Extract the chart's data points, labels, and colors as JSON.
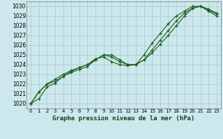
{
  "title": "Graphe pression niveau de la mer (hPa)",
  "background_color": "#cce8ec",
  "grid_color": "#aaccd4",
  "line_color": "#1a5c1a",
  "xlim": [
    -0.5,
    23.5
  ],
  "ylim": [
    1019.5,
    1030.5
  ],
  "xticks": [
    0,
    1,
    2,
    3,
    4,
    5,
    6,
    7,
    8,
    9,
    10,
    11,
    12,
    13,
    14,
    15,
    16,
    17,
    18,
    19,
    20,
    21,
    22,
    23
  ],
  "yticks": [
    1020,
    1021,
    1022,
    1023,
    1024,
    1025,
    1026,
    1027,
    1028,
    1029,
    1030
  ],
  "line1_y": [
    1020.0,
    1020.5,
    1021.7,
    1022.1,
    1022.8,
    1023.3,
    1023.7,
    1024.0,
    1024.6,
    1024.8,
    1024.3,
    1024.0,
    1023.9,
    1024.0,
    1024.5,
    1025.2,
    1026.1,
    1027.0,
    1028.0,
    1029.0,
    1029.8,
    1030.0,
    1029.7,
    1029.3
  ],
  "line2_y": [
    1020.0,
    1021.2,
    1022.0,
    1022.5,
    1023.0,
    1023.4,
    1023.7,
    1024.0,
    1024.5,
    1025.0,
    1024.8,
    1024.3,
    1024.0,
    1024.0,
    1024.5,
    1025.5,
    1026.5,
    1027.5,
    1028.5,
    1029.3,
    1029.8,
    1030.0,
    1029.6,
    1029.2
  ],
  "line3_y": [
    1020.0,
    1021.2,
    1022.0,
    1022.3,
    1022.8,
    1023.2,
    1023.5,
    1023.8,
    1024.5,
    1025.0,
    1025.0,
    1024.5,
    1024.0,
    1024.0,
    1025.0,
    1026.2,
    1027.2,
    1028.2,
    1029.0,
    1029.5,
    1030.0,
    1030.0,
    1029.5,
    1029.0
  ],
  "xlabel_fontsize": 6.5,
  "ytick_fontsize": 5.5,
  "xtick_fontsize": 5.0
}
